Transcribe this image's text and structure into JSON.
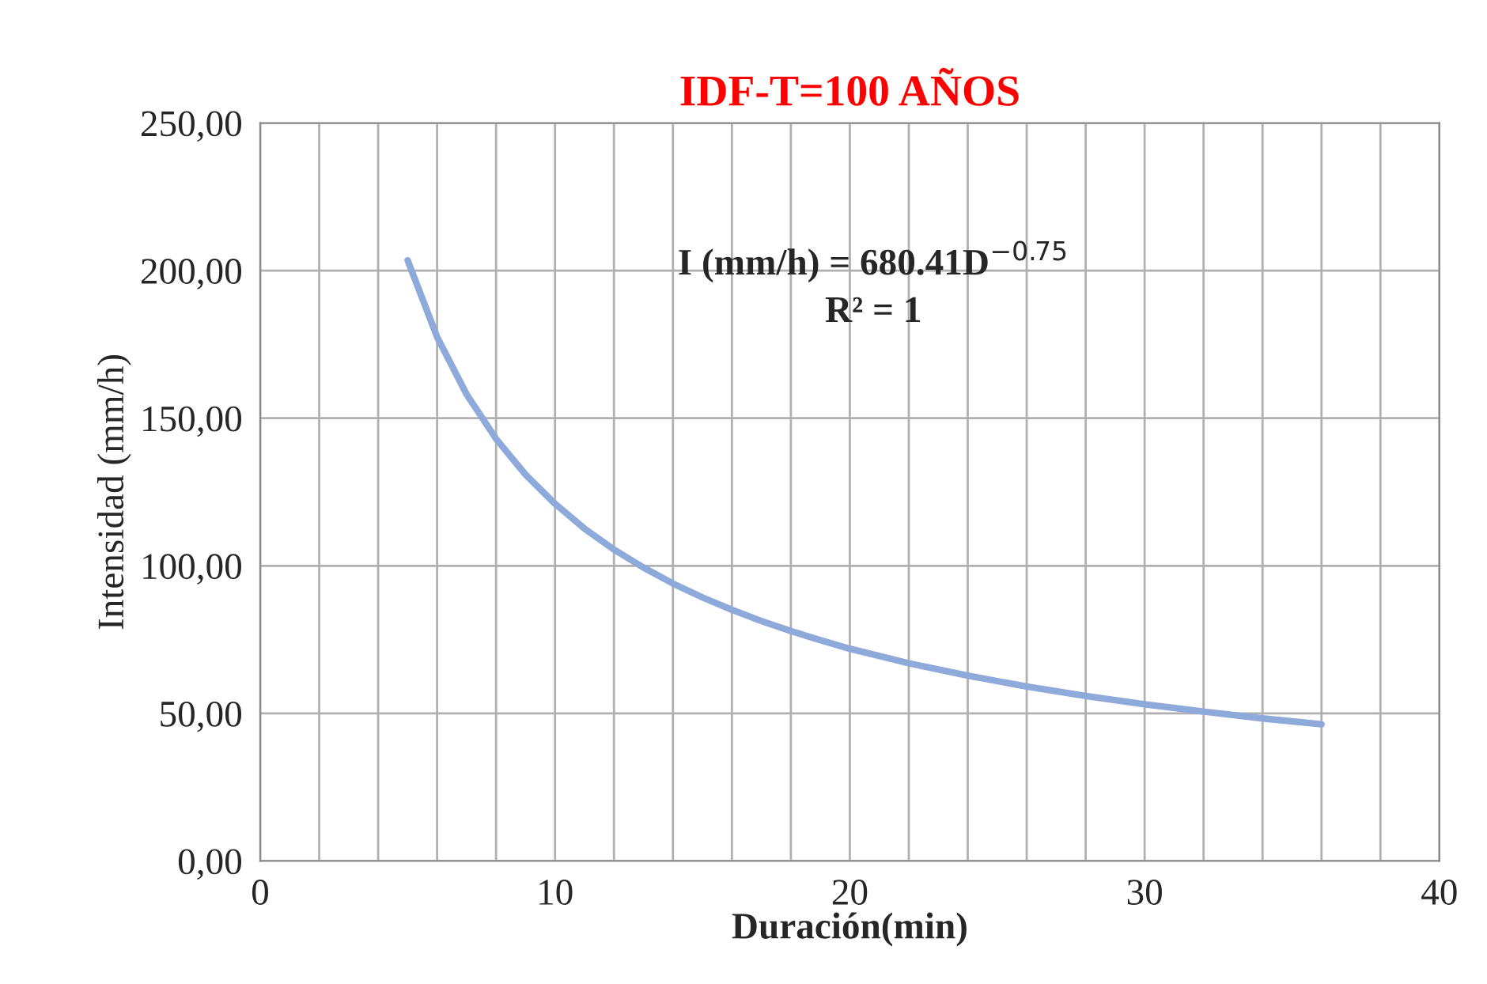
{
  "chart_data": {
    "type": "line",
    "title": "IDF-T=100 AÑOS",
    "xlabel": "Duración(min)",
    "ylabel": "Intensidad (mm/h)",
    "annotations": [
      "I (mm/h) = 680.41D$^{−0.75}$\nR² = 1"
    ],
    "x": [
      5,
      6,
      7,
      8,
      9,
      10,
      11,
      12,
      13,
      14,
      15,
      16,
      17,
      18,
      19,
      20,
      22,
      24,
      26,
      28,
      30,
      32,
      34,
      36
    ],
    "series": [
      {
        "color": "#8eaadb",
        "values": [
          203.5,
          177.5,
          158.1,
          143.0,
          130.9,
          121.0,
          112.6,
          105.5,
          99.4,
          94.0,
          89.3,
          85.1,
          81.3,
          77.9,
          74.8,
          71.9,
          67.0,
          62.8,
          59.1,
          55.9,
          53.1,
          50.6,
          48.3,
          46.3
        ]
      }
    ],
    "xlim": [
      0,
      40
    ],
    "ylim": [
      0,
      250
    ],
    "xticks": [
      0,
      {
        "value": 2,
        "label": null
      },
      {
        "value": 4,
        "label": null
      },
      {
        "value": 6,
        "label": null
      },
      {
        "value": 8,
        "label": null
      },
      10,
      {
        "value": 12,
        "label": null
      },
      {
        "value": 14,
        "label": null
      },
      {
        "value": 16,
        "label": null
      },
      {
        "value": 18,
        "label": null
      },
      20,
      {
        "value": 22,
        "label": null
      },
      {
        "value": 24,
        "label": null
      },
      {
        "value": 26,
        "label": null
      },
      {
        "value": 28,
        "label": null
      },
      30,
      {
        "value": 32,
        "label": null
      },
      {
        "value": 34,
        "label": null
      },
      {
        "value": 36,
        "label": null
      },
      {
        "value": 38,
        "label": null
      },
      40
    ],
    "yticks": [
      {
        "value": 0,
        "label": "0,00"
      },
      {
        "value": 50,
        "label": "50,00"
      },
      {
        "value": 100,
        "label": "100,00"
      },
      {
        "value": 150,
        "label": "150,00"
      },
      {
        "value": 200,
        "label": "200,00"
      },
      {
        "value": 250,
        "label": "250,00"
      }
    ],
    "grid": true,
    "marker": "none",
    "line_style": "solid"
  }
}
